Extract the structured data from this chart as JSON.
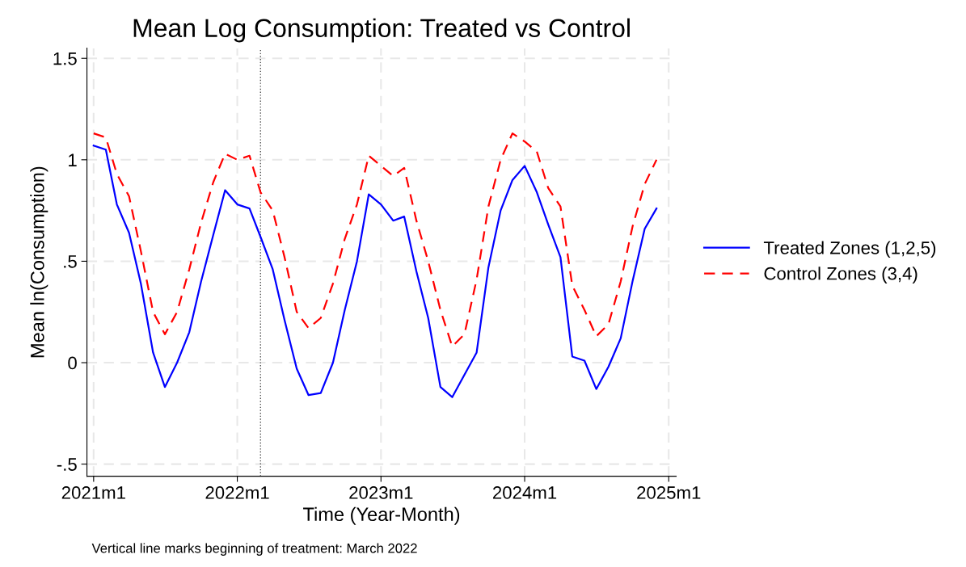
{
  "chart_data": {
    "type": "line",
    "title": "Mean Log Consumption: Treated vs Control",
    "xlabel": "Time (Year-Month)",
    "ylabel": "Mean ln(Consumption)",
    "x": [
      "2021-01",
      "2021-02",
      "2021-03",
      "2021-04",
      "2021-05",
      "2021-06",
      "2021-07",
      "2021-08",
      "2021-09",
      "2021-10",
      "2021-11",
      "2021-12",
      "2022-01",
      "2022-02",
      "2022-03",
      "2022-04",
      "2022-05",
      "2022-06",
      "2022-07",
      "2022-08",
      "2022-09",
      "2022-10",
      "2022-11",
      "2022-12",
      "2023-01",
      "2023-02",
      "2023-03",
      "2023-04",
      "2023-05",
      "2023-06",
      "2023-07",
      "2023-08",
      "2023-09",
      "2023-10",
      "2023-11",
      "2023-12",
      "2024-01",
      "2024-02",
      "2024-03",
      "2024-04",
      "2024-05",
      "2024-06",
      "2024-07",
      "2024-08",
      "2024-09",
      "2024-10",
      "2024-11",
      "2024-12"
    ],
    "series": [
      {
        "name": "Treated Zones (1,2,5)",
        "color": "#0000ff",
        "line_style": "solid",
        "values": [
          1.07,
          1.05,
          0.78,
          0.64,
          0.39,
          0.05,
          -0.12,
          0.0,
          0.15,
          0.4,
          0.63,
          0.85,
          0.78,
          0.76,
          0.62,
          0.46,
          0.21,
          -0.03,
          -0.16,
          -0.15,
          0.0,
          0.26,
          0.5,
          0.83,
          0.78,
          0.7,
          0.72,
          0.45,
          0.22,
          -0.12,
          -0.17,
          -0.06,
          0.05,
          0.47,
          0.75,
          0.9,
          0.97,
          0.84,
          0.68,
          0.52,
          0.03,
          0.01,
          -0.13,
          -0.02,
          0.12,
          0.4,
          0.66,
          0.76
        ]
      },
      {
        "name": "Control Zones (3,4)",
        "color": "#ff0000",
        "line_style": "dashed",
        "values": [
          1.13,
          1.11,
          0.93,
          0.82,
          0.55,
          0.25,
          0.14,
          0.25,
          0.46,
          0.69,
          0.89,
          1.03,
          1.0,
          1.02,
          0.84,
          0.75,
          0.52,
          0.25,
          0.17,
          0.22,
          0.39,
          0.61,
          0.78,
          1.02,
          0.97,
          0.92,
          0.96,
          0.7,
          0.5,
          0.26,
          0.08,
          0.14,
          0.41,
          0.77,
          1.0,
          1.13,
          1.09,
          1.04,
          0.86,
          0.77,
          0.38,
          0.26,
          0.13,
          0.19,
          0.4,
          0.67,
          0.88,
          1.0
        ]
      }
    ],
    "xlim": [
      "2020-12-15",
      "2025-01-20"
    ],
    "xticks": [
      {
        "value": "2021-01",
        "label": "2021m1"
      },
      {
        "value": "2022-01",
        "label": "2022m1"
      },
      {
        "value": "2023-01",
        "label": "2023m1"
      },
      {
        "value": "2024-01",
        "label": "2024m1"
      },
      {
        "value": "2025-01",
        "label": "2025m1"
      }
    ],
    "ylim": [
      -0.56,
      1.55
    ],
    "yticks": [
      {
        "value": -0.5,
        "label": "-.5"
      },
      0,
      {
        "value": 0.5,
        "label": ".5"
      },
      1,
      1.5
    ],
    "ref_lines": [
      {
        "axis": "x",
        "value": "2022-03",
        "color": "#555555",
        "line_style": "dotted"
      }
    ],
    "grid": true,
    "legend": "right",
    "marker": "none",
    "annotations": [
      "Vertical line marks beginning of treatment: March 2022"
    ]
  }
}
